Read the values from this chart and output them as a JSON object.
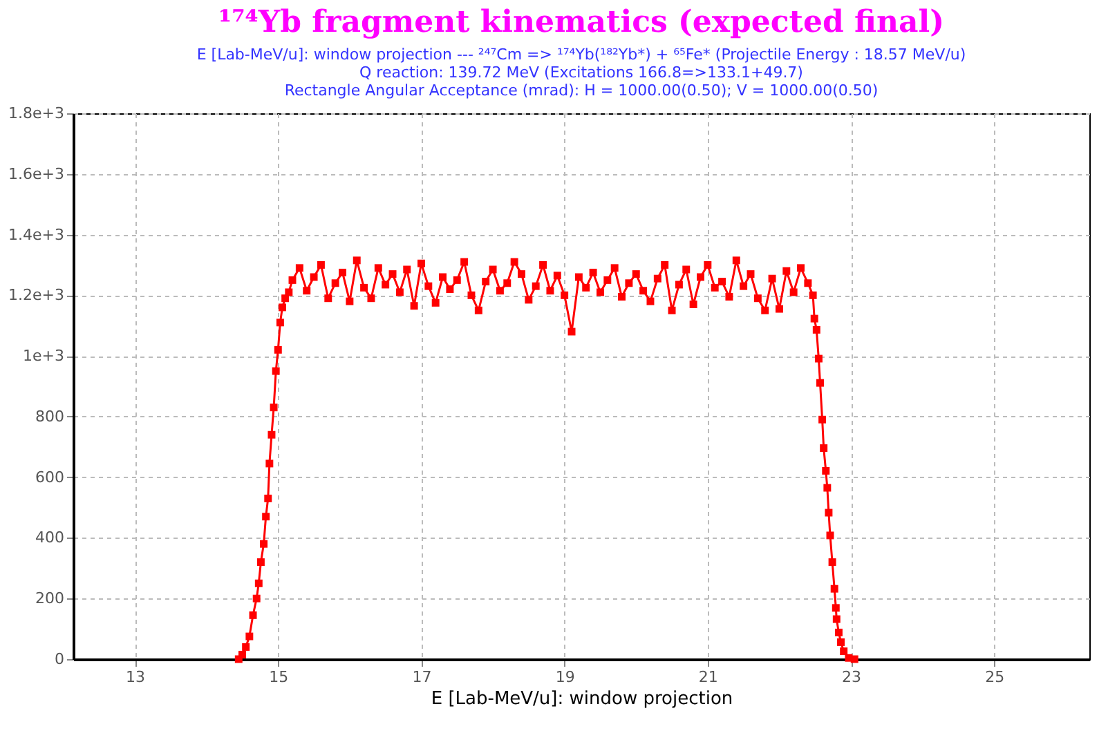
{
  "chart_data": {
    "type": "line",
    "title": "¹⁷⁴Yb  fragment kinematics (expected final)",
    "subtitle": [
      "E [Lab-MeV/u]:  window projection --- ²⁴⁷Cm => ¹⁷⁴Yb(¹⁸²Yb*) + ⁶⁵Fe*        (Projectile Energy : 18.57 MeV/u)",
      "Q reaction: 139.72 MeV (Excitations 166.8=>133.1+49.7)",
      "Rectangle Angular Acceptance (mrad):  H = 1000.00(0.50); V = 1000.00(0.50)"
    ],
    "xlabel": "E [Lab-MeV/u]:  window projection",
    "xlim": [
      12.14,
      26.33
    ],
    "xticks": [
      13,
      15,
      17,
      19,
      21,
      23,
      25
    ],
    "ylim": [
      0,
      1800
    ],
    "yticks": [
      0,
      200,
      400,
      600,
      800,
      {
        "value": 1000,
        "label": "1e+3"
      },
      {
        "value": 1200,
        "label": "1.2e+3"
      },
      {
        "value": 1400,
        "label": "1.4e+3"
      },
      {
        "value": 1600,
        "label": "1.6e+3"
      },
      {
        "value": 1800,
        "label": "1.8e+3"
      }
    ],
    "grid": true,
    "marker": "square",
    "line_style": "solid",
    "series": [
      {
        "color": "#ff0000",
        "x": [
          14.45,
          14.5,
          14.55,
          14.6,
          14.65,
          14.7,
          14.73,
          14.76,
          14.8,
          14.83,
          14.86,
          14.88,
          14.91,
          14.94,
          14.97,
          15.0,
          15.03,
          15.06,
          15.1,
          15.15,
          15.2,
          15.3,
          15.4,
          15.5,
          15.6,
          15.7,
          15.8,
          15.9,
          16.0,
          16.1,
          16.2,
          16.3,
          16.4,
          16.5,
          16.6,
          16.7,
          16.8,
          16.9,
          17.0,
          17.1,
          17.2,
          17.3,
          17.4,
          17.5,
          17.6,
          17.7,
          17.8,
          17.9,
          18.0,
          18.1,
          18.2,
          18.3,
          18.4,
          18.5,
          18.6,
          18.7,
          18.8,
          18.9,
          19.0,
          19.1,
          19.2,
          19.3,
          19.4,
          19.5,
          19.6,
          19.7,
          19.8,
          19.9,
          20.0,
          20.1,
          20.2,
          20.3,
          20.4,
          20.5,
          20.6,
          20.7,
          20.8,
          20.9,
          21.0,
          21.1,
          21.2,
          21.3,
          21.4,
          21.5,
          21.6,
          21.7,
          21.8,
          21.9,
          22.0,
          22.1,
          22.2,
          22.3,
          22.4,
          22.47,
          22.49,
          22.52,
          22.55,
          22.57,
          22.6,
          22.62,
          22.65,
          22.67,
          22.69,
          22.71,
          22.74,
          22.77,
          22.79,
          22.8,
          22.83,
          22.86,
          22.9,
          22.97,
          23.05
        ],
        "values": [
          0,
          15,
          40,
          75,
          145,
          200,
          250,
          320,
          380,
          470,
          530,
          645,
          740,
          830,
          950,
          1020,
          1110,
          1160,
          1190,
          1210,
          1250,
          1290,
          1215,
          1260,
          1300,
          1190,
          1240,
          1275,
          1180,
          1315,
          1225,
          1190,
          1290,
          1235,
          1270,
          1210,
          1285,
          1165,
          1305,
          1230,
          1175,
          1260,
          1220,
          1250,
          1310,
          1200,
          1150,
          1245,
          1285,
          1215,
          1240,
          1310,
          1270,
          1185,
          1230,
          1300,
          1215,
          1265,
          1200,
          1080,
          1260,
          1225,
          1275,
          1210,
          1250,
          1290,
          1195,
          1240,
          1270,
          1215,
          1180,
          1255,
          1300,
          1150,
          1235,
          1285,
          1170,
          1260,
          1300,
          1225,
          1245,
          1195,
          1315,
          1230,
          1270,
          1190,
          1150,
          1255,
          1155,
          1280,
          1210,
          1290,
          1240,
          1200,
          1123,
          1086,
          991,
          911,
          790,
          696,
          621,
          565,
          483,
          408,
          320,
          232,
          169,
          132,
          88,
          56,
          26,
          4,
          0
        ]
      }
    ]
  }
}
